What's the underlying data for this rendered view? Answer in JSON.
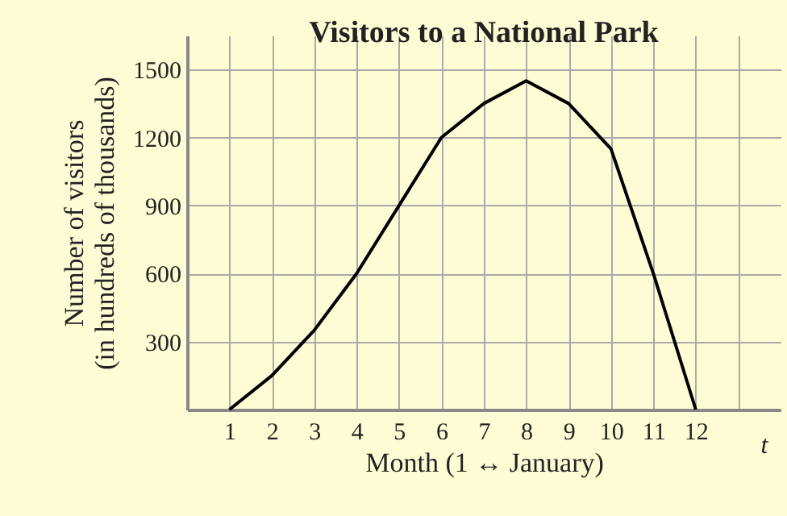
{
  "chart_data": {
    "type": "line",
    "title": "Visitors to a National Park",
    "xlabel": "Month (1 ↔ January)",
    "ylabel": "Number of visitors\n(in hundreds of thousands)",
    "annotations": [
      "t"
    ],
    "x": [
      1,
      2,
      3,
      4,
      5,
      6,
      7,
      8,
      9,
      10,
      11,
      12
    ],
    "series": [
      {
        "color": "#000000",
        "values": [
          0,
          150,
          350,
          600,
          900,
          1200,
          1350,
          1450,
          1350,
          1150,
          600,
          0
        ]
      }
    ],
    "xlim": [
      0,
      14
    ],
    "xticks": [
      1,
      2,
      3,
      4,
      5,
      6,
      7,
      8,
      9,
      10,
      11,
      12,
      {
        "value": 13,
        "label": null
      }
    ],
    "ylim": [
      0,
      1650
    ],
    "yticks": [
      300,
      600,
      900,
      1200,
      1500
    ],
    "grid": true,
    "marker": "none",
    "line_style": "solid"
  }
}
